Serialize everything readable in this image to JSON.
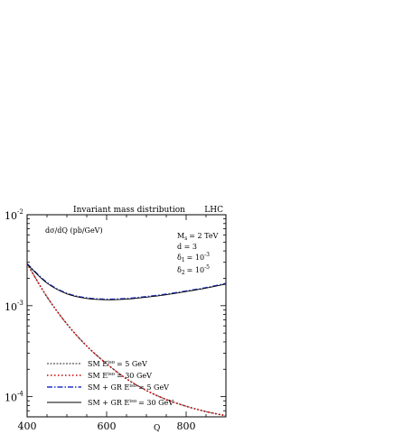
{
  "chart_data": {
    "type": "line",
    "title": "Invariant mass distribution",
    "corner_label": "LHC",
    "xlabel": "Q",
    "ylabel": "dσ/dQ (pb/GeV)",
    "xlim": [
      400,
      900
    ],
    "ylim": [
      6e-05,
      0.01
    ],
    "yscale": "log",
    "x_ticks": [
      400,
      600,
      800
    ],
    "y_ticks": [
      {
        "base": "10",
        "exp": "-2",
        "value": 0.01
      },
      {
        "base": "10",
        "exp": "-3",
        "value": 0.001
      },
      {
        "base": "10",
        "exp": "-4",
        "value": 0.0001
      }
    ],
    "parameters": {
      "ms": {
        "lhs": "M",
        "sub": "s",
        "rhs": "= 2 TeV"
      },
      "d": "d = 3",
      "d1": {
        "lhs": "δ",
        "sub": "1",
        "rhs": "= 10",
        "sup": "-3"
      },
      "d2": {
        "lhs": "δ",
        "sub": "2",
        "rhs": "= 10",
        "sup": "-5"
      }
    },
    "legend_position": "bottom-left",
    "series": [
      {
        "name": "SM E^iso = 5 GeV",
        "legend": {
          "pre": "SM E",
          "sup": "iso",
          "post": "= 5 GeV"
        },
        "color": "#555555",
        "dash": "2,1.5",
        "width": 1.2,
        "x": [
          400,
          450,
          500,
          550,
          600,
          650,
          700,
          750,
          800,
          850,
          900
        ],
        "y": [
          0.0029,
          0.00125,
          0.00063,
          0.00036,
          0.00023,
          0.000157,
          0.000117,
          9.3e-05,
          7.85e-05,
          6.85e-05,
          6.17e-05
        ]
      },
      {
        "name": "SM E^iso = 30 GeV",
        "legend": {
          "pre": "SM E",
          "sup": "iso",
          "post": "= 30 GeV"
        },
        "color": "#cc0000",
        "dash": "1.5,2.5",
        "width": 1.6,
        "x": [
          400,
          450,
          500,
          550,
          600,
          650,
          700,
          750,
          800,
          850,
          900
        ],
        "y": [
          0.0029,
          0.00125,
          0.00063,
          0.00036,
          0.00023,
          0.000157,
          0.000117,
          9.3e-05,
          7.85e-05,
          6.85e-05,
          6.17e-05
        ]
      },
      {
        "name": "SM + GR E^iso = 5 GeV",
        "legend": {
          "pre": "SM + GR E",
          "sup": "iso",
          "post": "= 5 GeV"
        },
        "color": "#2233cc",
        "dash": "6,2,1.5,2",
        "width": 1.4,
        "x": [
          400,
          450,
          500,
          550,
          600,
          650,
          700,
          750,
          800,
          850,
          900
        ],
        "y": [
          0.0029,
          0.0018,
          0.00137,
          0.00122,
          0.00118,
          0.0012,
          0.00126,
          0.00134,
          0.00145,
          0.00158,
          0.00176
        ]
      },
      {
        "name": "SM + GR E^iso = 30 GeV",
        "legend": {
          "pre": "SM + GR E",
          "sup": "iso",
          "post": "= 30 GeV"
        },
        "color": "#000000",
        "dash": "",
        "width": 0.9,
        "x": [
          400,
          450,
          500,
          550,
          600,
          650,
          700,
          750,
          800,
          850,
          900
        ],
        "y": [
          0.00285,
          0.00177,
          0.00135,
          0.0012,
          0.00116,
          0.00118,
          0.00124,
          0.00132,
          0.00143,
          0.00156,
          0.00173
        ]
      }
    ]
  }
}
